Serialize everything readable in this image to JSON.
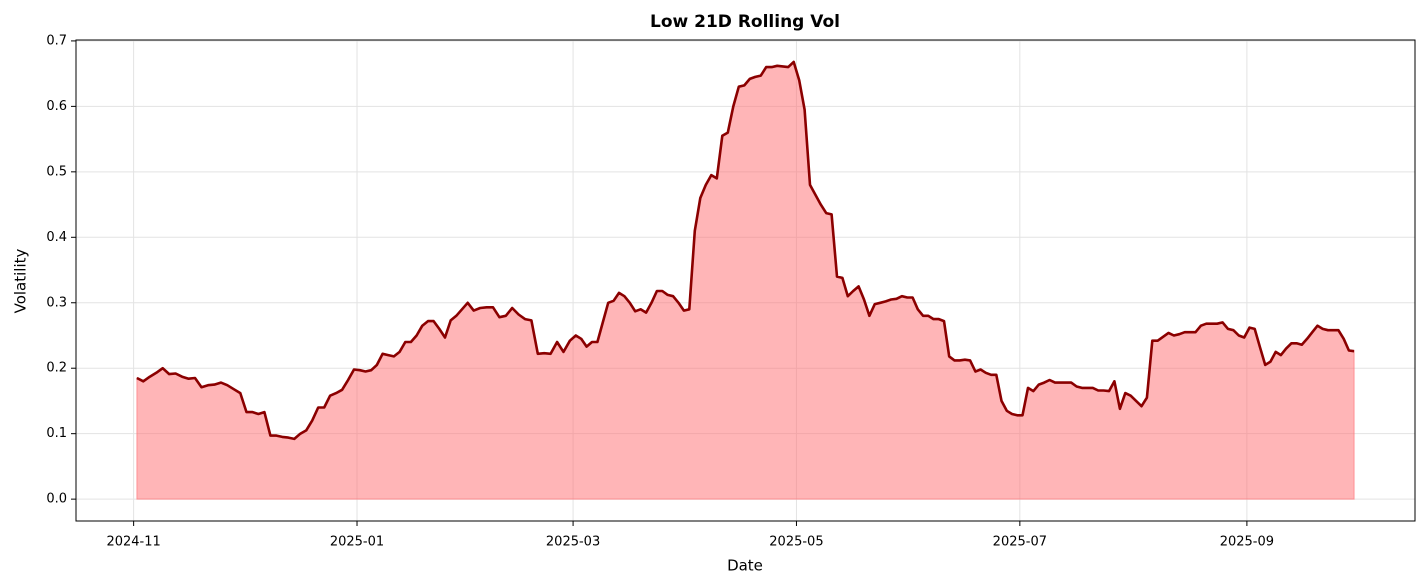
{
  "chart_data": {
    "type": "area",
    "title": "Low 21D Rolling Vol",
    "x_label": "Date",
    "y_label": "Volatility",
    "x": [
      "2024-11",
      "2024-11",
      "2024-11",
      "2024-11",
      "2024-11",
      "2024-11",
      "2024-11",
      "2024-11",
      "2024-11",
      "2024-11",
      "2024-11",
      "2024-11",
      "2024-11",
      "2024-11",
      "2024-11",
      "2024-11",
      "2024-11",
      "2024-12",
      "2024-12",
      "2024-12",
      "2024-12",
      "2024-12",
      "2024-12",
      "2024-12",
      "2024-12",
      "2024-12",
      "2024-12",
      "2024-12",
      "2024-12",
      "2024-12",
      "2024-12",
      "2024-12",
      "2024-12",
      "2024-12",
      "2024-12",
      "2024-12",
      "2025-01",
      "2025-01",
      "2025-01",
      "2025-01",
      "2025-01",
      "2025-01",
      "2025-01",
      "2025-01",
      "2025-01",
      "2025-01",
      "2025-01",
      "2025-01",
      "2025-01",
      "2025-01",
      "2025-01",
      "2025-01",
      "2025-01",
      "2025-01",
      "2025-01",
      "2025-01",
      "2025-02",
      "2025-02",
      "2025-02",
      "2025-02",
      "2025-02",
      "2025-02",
      "2025-02",
      "2025-02",
      "2025-02",
      "2025-02",
      "2025-02",
      "2025-02",
      "2025-02",
      "2025-02",
      "2025-02",
      "2025-02",
      "2025-03",
      "2025-03",
      "2025-03",
      "2025-03",
      "2025-03",
      "2025-03",
      "2025-03",
      "2025-03",
      "2025-03",
      "2025-03",
      "2025-03",
      "2025-03",
      "2025-03",
      "2025-03",
      "2025-03",
      "2025-03",
      "2025-03",
      "2025-03",
      "2025-03",
      "2025-03",
      "2025-03",
      "2025-04",
      "2025-04",
      "2025-04",
      "2025-04",
      "2025-04",
      "2025-04",
      "2025-04",
      "2025-04",
      "2025-04",
      "2025-04",
      "2025-04",
      "2025-04",
      "2025-04",
      "2025-04",
      "2025-04",
      "2025-04",
      "2025-04",
      "2025-04",
      "2025-04",
      "2025-04",
      "2025-05",
      "2025-05",
      "2025-05",
      "2025-05",
      "2025-05",
      "2025-05",
      "2025-05",
      "2025-05",
      "2025-05",
      "2025-05",
      "2025-05",
      "2025-05",
      "2025-05",
      "2025-05",
      "2025-05",
      "2025-05",
      "2025-05",
      "2025-05",
      "2025-05",
      "2025-05",
      "2025-05",
      "2025-06",
      "2025-06",
      "2025-06",
      "2025-06",
      "2025-06",
      "2025-06",
      "2025-06",
      "2025-06",
      "2025-06",
      "2025-06",
      "2025-06",
      "2025-06",
      "2025-06",
      "2025-06",
      "2025-06",
      "2025-06",
      "2025-06",
      "2025-06",
      "2025-06",
      "2025-06",
      "2025-06",
      "2025-07",
      "2025-07",
      "2025-07",
      "2025-07",
      "2025-07",
      "2025-07",
      "2025-07",
      "2025-07",
      "2025-07",
      "2025-07",
      "2025-07",
      "2025-07",
      "2025-07",
      "2025-07",
      "2025-07",
      "2025-07",
      "2025-07",
      "2025-07",
      "2025-07",
      "2025-07",
      "2025-07",
      "2025-08",
      "2025-08",
      "2025-08",
      "2025-08",
      "2025-08",
      "2025-08",
      "2025-08",
      "2025-08",
      "2025-08",
      "2025-08",
      "2025-08",
      "2025-08",
      "2025-08",
      "2025-08",
      "2025-08",
      "2025-08",
      "2025-08",
      "2025-08",
      "2025-08",
      "2025-08",
      "2025-08",
      "2025-09",
      "2025-09",
      "2025-09",
      "2025-09",
      "2025-09",
      "2025-09",
      "2025-09",
      "2025-09",
      "2025-09",
      "2025-09",
      "2025-09",
      "2025-09",
      "2025-09",
      "2025-09",
      "2025-09",
      "2025-09",
      "2025-09",
      "2025-09",
      "2025-09",
      "2025-09",
      "2025-09"
    ],
    "values": [
      0.185,
      0.18,
      0.187,
      0.193,
      0.2,
      0.191,
      0.192,
      0.187,
      0.184,
      0.185,
      0.171,
      0.174,
      0.175,
      0.178,
      0.174,
      0.168,
      0.162,
      0.133,
      0.133,
      0.13,
      0.133,
      0.097,
      0.097,
      0.095,
      0.094,
      0.092,
      0.1,
      0.105,
      0.12,
      0.14,
      0.14,
      0.158,
      0.162,
      0.167,
      0.182,
      0.198,
      0.197,
      0.195,
      0.197,
      0.205,
      0.222,
      0.22,
      0.218,
      0.225,
      0.24,
      0.24,
      0.25,
      0.265,
      0.272,
      0.272,
      0.26,
      0.247,
      0.273,
      0.28,
      0.29,
      0.3,
      0.288,
      0.292,
      0.293,
      0.293,
      0.278,
      0.28,
      0.292,
      0.282,
      0.275,
      0.273,
      0.222,
      0.223,
      0.222,
      0.24,
      0.225,
      0.242,
      0.25,
      0.245,
      0.233,
      0.24,
      0.24,
      0.27,
      0.3,
      0.303,
      0.315,
      0.31,
      0.3,
      0.287,
      0.29,
      0.285,
      0.3,
      0.318,
      0.318,
      0.312,
      0.31,
      0.3,
      0.288,
      0.29,
      0.41,
      0.46,
      0.48,
      0.495,
      0.49,
      0.555,
      0.56,
      0.6,
      0.63,
      0.632,
      0.642,
      0.645,
      0.647,
      0.66,
      0.66,
      0.662,
      0.661,
      0.66,
      0.668,
      0.64,
      0.595,
      0.48,
      0.465,
      0.45,
      0.437,
      0.435,
      0.34,
      0.338,
      0.31,
      0.318,
      0.325,
      0.305,
      0.28,
      0.298,
      0.3,
      0.302,
      0.305,
      0.306,
      0.31,
      0.308,
      0.308,
      0.29,
      0.28,
      0.28,
      0.275,
      0.275,
      0.272,
      0.218,
      0.212,
      0.212,
      0.213,
      0.212,
      0.195,
      0.198,
      0.193,
      0.19,
      0.19,
      0.15,
      0.135,
      0.13,
      0.128,
      0.128,
      0.17,
      0.165,
      0.175,
      0.178,
      0.182,
      0.178,
      0.178,
      0.178,
      0.178,
      0.172,
      0.17,
      0.17,
      0.17,
      0.166,
      0.166,
      0.165,
      0.18,
      0.138,
      0.162,
      0.158,
      0.15,
      0.142,
      0.155,
      0.242,
      0.242,
      0.248,
      0.254,
      0.25,
      0.252,
      0.255,
      0.255,
      0.255,
      0.265,
      0.268,
      0.268,
      0.268,
      0.27,
      0.26,
      0.258,
      0.25,
      0.247,
      0.262,
      0.26,
      0.232,
      0.205,
      0.21,
      0.225,
      0.22,
      0.23,
      0.238,
      0.238,
      0.236,
      0.245,
      0.255,
      0.265,
      0.26,
      0.258,
      0.258,
      0.258,
      0.245,
      0.227,
      0.226
    ],
    "color": "#8b0000",
    "fill_color": "#ff6b70",
    "ylim": [
      -0.0334,
      0.7014
    ],
    "yticks": [
      {
        "value": 0,
        "label": "0.0"
      },
      0.1,
      0.2,
      0.3,
      0.4,
      0.5,
      0.6,
      0.7
    ],
    "xticks": [
      "2024-11",
      "2025-01",
      "2025-03",
      "2025-05",
      "2025-07",
      "2025-09"
    ],
    "grid": true
  }
}
